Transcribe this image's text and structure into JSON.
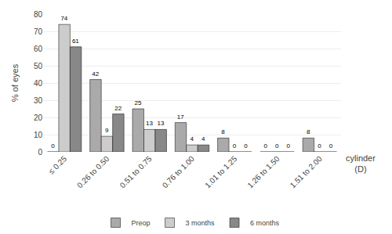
{
  "chart_data": {
    "type": "bar",
    "categories": [
      "≤ 0.25",
      "0.26 to 0.50",
      "0.51 to 0.75",
      "0.76 to 1.00",
      "1.01 to 1.25",
      "1.26 to 1.50",
      "1.51 to 2.00"
    ],
    "series": [
      {
        "name": "Preop",
        "color": "#aaaaaa",
        "values": [
          0,
          42,
          25,
          17,
          8,
          0,
          8
        ]
      },
      {
        "name": "3 months",
        "color": "#cccccc",
        "values": [
          74,
          9,
          13,
          4,
          0,
          0,
          0
        ]
      },
      {
        "name": "6 months",
        "color": "#888888",
        "values": [
          61,
          22,
          13,
          4,
          0,
          0,
          0
        ]
      }
    ],
    "ylabel": "% of eyes",
    "xlabel": "cylinder\n(D)",
    "ylim": [
      0,
      80
    ],
    "yticks": [
      0,
      10,
      20,
      30,
      40,
      50,
      60,
      70,
      80
    ],
    "grid": true,
    "legend": "bottom",
    "data_labels": true
  }
}
